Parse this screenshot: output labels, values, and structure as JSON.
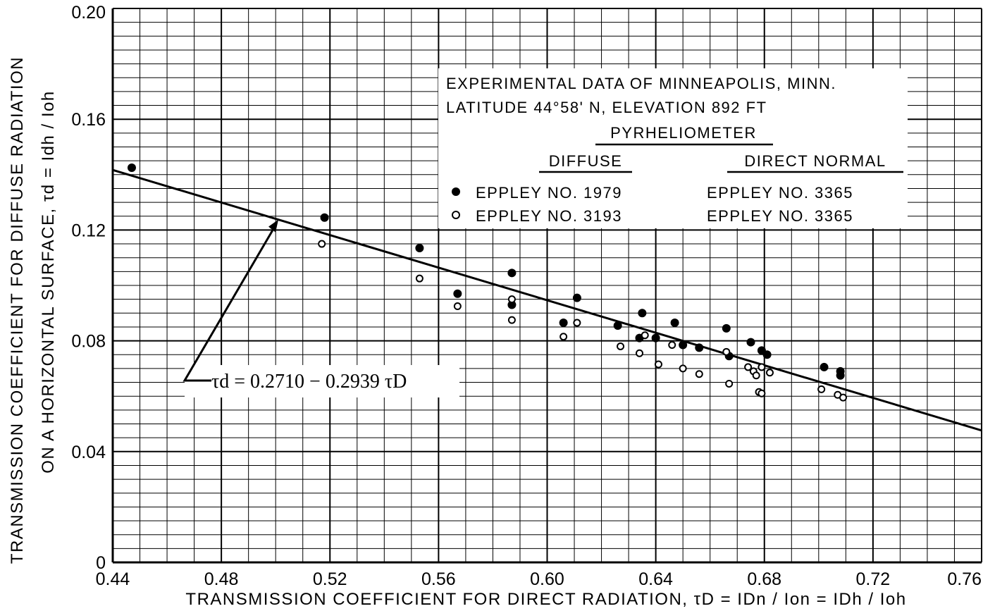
{
  "chart_data": {
    "type": "scatter",
    "xlabel": "TRANSMISSION COEFFICIENT FOR DIRECT RADIATION, τD = IDn / Ion = IDh / Ioh",
    "ylabel_line1": "TRANSMISSION COEFFICIENT FOR DIFFUSE RADIATION",
    "ylabel_line2": "ON A HORIZONTAL SURFACE, τd = Idh / Ioh",
    "x_ticks": [
      "0.44",
      "0.48",
      "0.52",
      "0.56",
      "0.60",
      "0.64",
      "0.68",
      "0.72",
      "0.76"
    ],
    "y_ticks": [
      "0",
      "0.04",
      "0.08",
      "0.12",
      "0.16",
      "0.20"
    ],
    "xlim": [
      0.44,
      0.76
    ],
    "ylim": [
      0,
      0.2
    ],
    "grid": true,
    "legend": {
      "placement": "top-right",
      "title_line1": "EXPERIMENTAL DATA OF MINNEAPOLIS, MINN.",
      "title_line2": "LATITUDE 44°58' N, ELEVATION 892 FT",
      "group_header": "PYRHELIOMETER",
      "col1_header": "DIFFUSE",
      "col2_header": "DIRECT NORMAL",
      "rows": [
        {
          "marker": "filled",
          "diffuse": "EPPLEY NO. 1979",
          "direct": "EPPLEY NO. 3365"
        },
        {
          "marker": "open",
          "diffuse": "EPPLEY NO. 3193",
          "direct": "EPPLEY NO. 3365"
        }
      ]
    },
    "regression": {
      "label": "τd = 0.2710 − 0.2939 τD",
      "intercept": 0.271,
      "slope": -0.2939,
      "arrow_to_x": 0.501
    },
    "series": [
      {
        "marker": "filled",
        "points": [
          [
            0.447,
            0.1425
          ],
          [
            0.518,
            0.1245
          ],
          [
            0.553,
            0.1135
          ],
          [
            0.587,
            0.1045
          ],
          [
            0.567,
            0.097
          ],
          [
            0.587,
            0.093
          ],
          [
            0.606,
            0.0865
          ],
          [
            0.611,
            0.0955
          ],
          [
            0.626,
            0.0855
          ],
          [
            0.635,
            0.09
          ],
          [
            0.634,
            0.081
          ],
          [
            0.64,
            0.081
          ],
          [
            0.647,
            0.0865
          ],
          [
            0.65,
            0.0785
          ],
          [
            0.656,
            0.0775
          ],
          [
            0.666,
            0.0845
          ],
          [
            0.667,
            0.0745
          ],
          [
            0.675,
            0.0795
          ],
          [
            0.679,
            0.0765
          ],
          [
            0.681,
            0.075
          ],
          [
            0.702,
            0.0705
          ],
          [
            0.708,
            0.069
          ],
          [
            0.708,
            0.0675
          ]
        ]
      },
      {
        "marker": "open",
        "points": [
          [
            0.517,
            0.115
          ],
          [
            0.553,
            0.1025
          ],
          [
            0.567,
            0.0925
          ],
          [
            0.587,
            0.095
          ],
          [
            0.587,
            0.0875
          ],
          [
            0.606,
            0.0815
          ],
          [
            0.611,
            0.0865
          ],
          [
            0.627,
            0.078
          ],
          [
            0.634,
            0.0755
          ],
          [
            0.636,
            0.082
          ],
          [
            0.641,
            0.0715
          ],
          [
            0.646,
            0.0785
          ],
          [
            0.65,
            0.07
          ],
          [
            0.656,
            0.068
          ],
          [
            0.666,
            0.076
          ],
          [
            0.667,
            0.0645
          ],
          [
            0.674,
            0.0705
          ],
          [
            0.676,
            0.069
          ],
          [
            0.677,
            0.0675
          ],
          [
            0.678,
            0.0615
          ],
          [
            0.679,
            0.061
          ],
          [
            0.679,
            0.0705
          ],
          [
            0.682,
            0.0685
          ],
          [
            0.701,
            0.0625
          ],
          [
            0.707,
            0.0605
          ],
          [
            0.709,
            0.0595
          ]
        ]
      }
    ]
  }
}
